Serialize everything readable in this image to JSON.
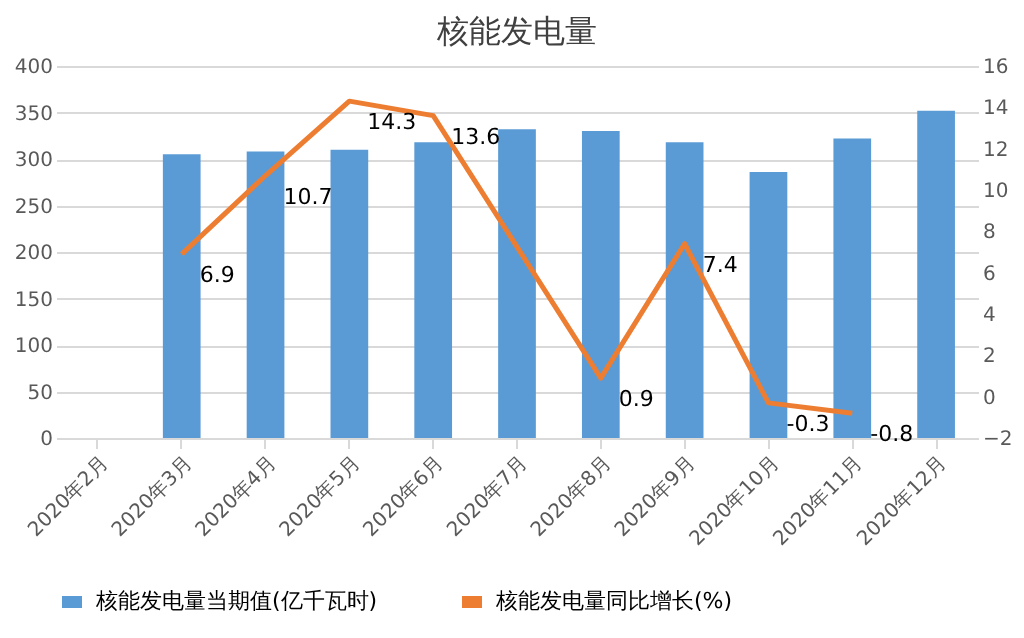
{
  "chart_data": {
    "type": "bar",
    "title": "核能发电量",
    "categories": [
      "2020年2月",
      "2020年3月",
      "2020年4月",
      "2020年5月",
      "2020年6月",
      "2020年7月",
      "2020年8月",
      "2020年9月",
      "2020年10月",
      "2020年11月",
      "2020年12月"
    ],
    "series": [
      {
        "name": "核能发电量当期值(亿千瓦时)",
        "color": "#5b9bd5",
        "values": [
          null,
          305,
          308,
          310,
          318,
          332,
          330,
          318,
          286,
          322,
          352
        ]
      },
      {
        "name": "核能发电量同比增长(%)",
        "type": "line",
        "axis": "y2",
        "color": "#ed7d31",
        "values": [
          null,
          6.9,
          10.7,
          14.3,
          13.6,
          null,
          0.9,
          7.4,
          -0.3,
          -0.8,
          null
        ],
        "value_labels": [
          null,
          "6.9",
          "10.7",
          "14.3",
          "13.6",
          null,
          "0.9",
          "7.4",
          "-0.3",
          "-0.8",
          null
        ]
      }
    ],
    "ylim": [
      0,
      400
    ],
    "yticks": [
      0,
      50,
      100,
      150,
      200,
      250,
      300,
      350,
      400
    ],
    "y2lim": [
      -2,
      16
    ],
    "y2ticks": [
      -2,
      0,
      2,
      4,
      6,
      8,
      10,
      12,
      14,
      16
    ],
    "grid": "y",
    "legend": "bottom"
  }
}
